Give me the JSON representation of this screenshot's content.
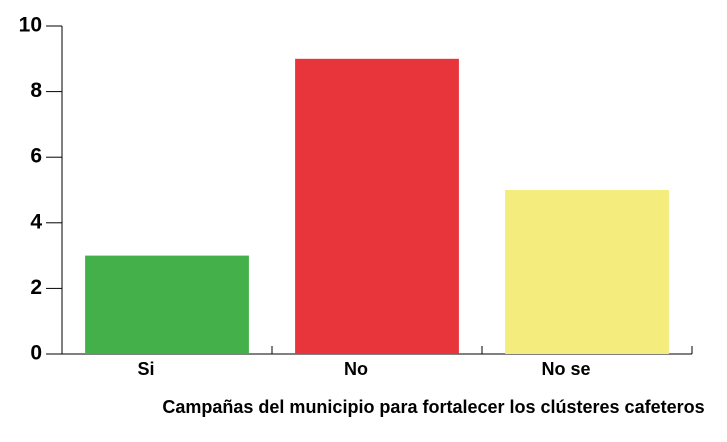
{
  "chart_data": {
    "type": "bar",
    "x_label": "Campañas del municipio para fortalecer los clústeres cafeteros",
    "categories": [
      "Si",
      "No",
      "No se"
    ],
    "values": [
      3,
      9,
      5
    ],
    "colors": [
      "#43b04a",
      "#e8343b",
      "#f4ec7c"
    ],
    "ylim": [
      0,
      10
    ],
    "yticks": [
      0,
      2,
      4,
      6,
      8,
      10
    ]
  }
}
